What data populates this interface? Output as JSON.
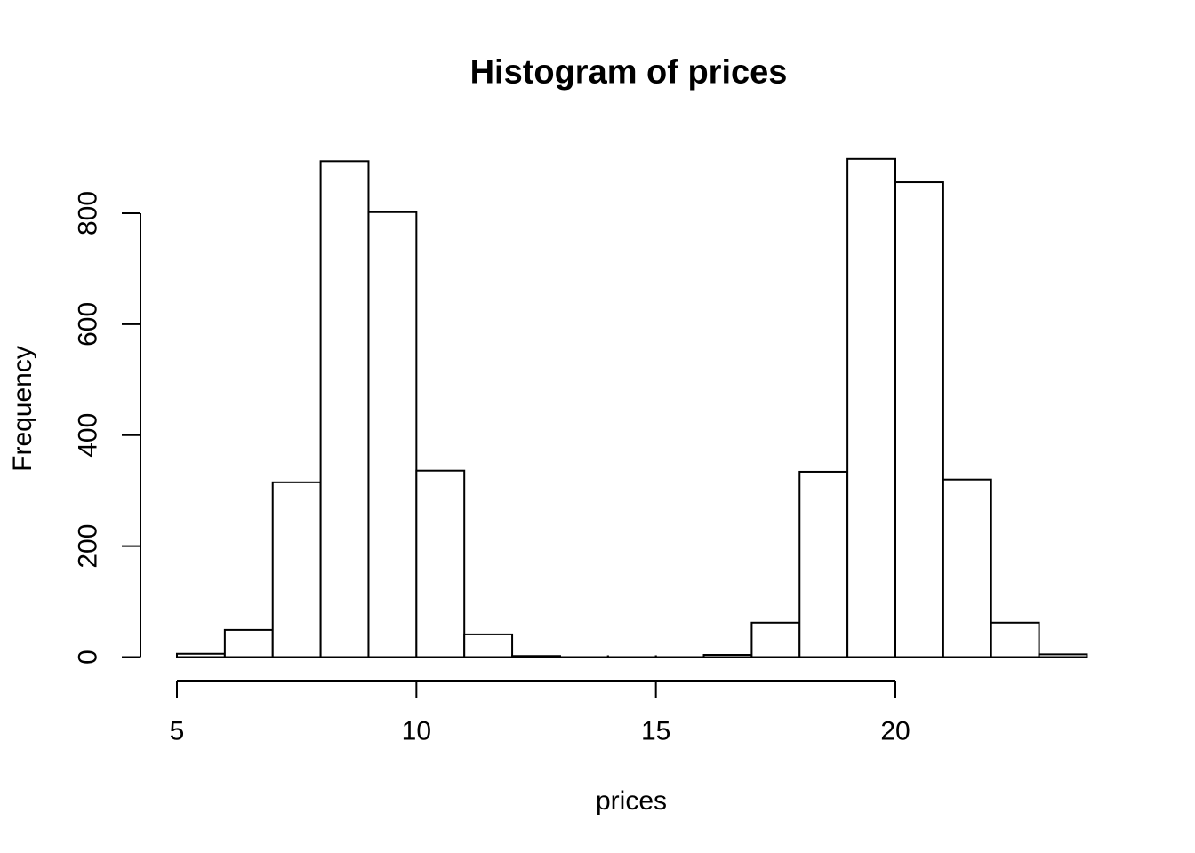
{
  "page": {
    "background": "#ffffff"
  },
  "chart_data": {
    "type": "bar",
    "variant": "histogram",
    "title": "Histogram of prices",
    "xlabel": "prices",
    "ylabel": "Frequency",
    "bin_edges": [
      5,
      6,
      7,
      8,
      9,
      10,
      11,
      12,
      13,
      14,
      15,
      16,
      17,
      18,
      19,
      20,
      21,
      22,
      23,
      24
    ],
    "counts": [
      6,
      49,
      315,
      894,
      802,
      336,
      41,
      2,
      0,
      0,
      0,
      4,
      62,
      334,
      898,
      856,
      320,
      62,
      5
    ],
    "x_ticks": [
      5,
      10,
      15,
      20
    ],
    "x_tick_labels": [
      "5",
      "10",
      "15",
      "20"
    ],
    "y_ticks": [
      0,
      200,
      400,
      600,
      800
    ],
    "y_tick_labels": [
      "0",
      "200",
      "400",
      "600",
      "800"
    ],
    "xlim": [
      5,
      24
    ],
    "ylim": [
      0,
      800
    ],
    "grid": false,
    "legend": "none",
    "bar_fill": "#ffffff",
    "bar_stroke": "#000000",
    "axis_color": "#000000",
    "text_color": "#000000"
  }
}
